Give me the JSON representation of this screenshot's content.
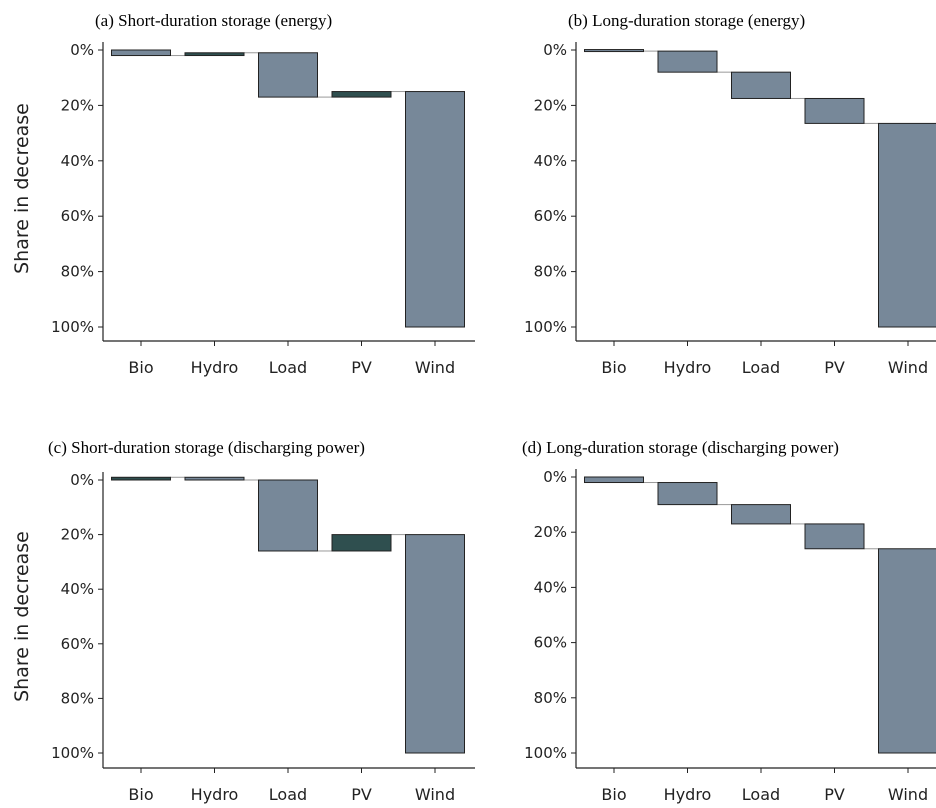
{
  "figure": {
    "colors": {
      "increase": "#778899",
      "decrease": "#2f4f4f",
      "connector": "#999999",
      "axis": "#222222",
      "edge": "#222222"
    }
  },
  "chart_data": [
    {
      "type": "bar",
      "subtype": "waterfall",
      "title": "(a) Short-duration storage (energy)",
      "ylabel": "Share in decrease",
      "categories": [
        "Bio",
        "Hydro",
        "Load",
        "PV",
        "Wind"
      ],
      "yticks": [
        "0%",
        "20%",
        "40%",
        "60%",
        "80%",
        "100%"
      ],
      "ylim": [
        0,
        100
      ],
      "y_inverted": true,
      "steps": [
        {
          "category": "Bio",
          "start": 0,
          "end": 2,
          "direction": "increase"
        },
        {
          "category": "Hydro",
          "start": 2,
          "end": 1,
          "direction": "decrease"
        },
        {
          "category": "Load",
          "start": 1,
          "end": 17,
          "direction": "increase"
        },
        {
          "category": "PV",
          "start": 17,
          "end": 15,
          "direction": "decrease"
        },
        {
          "category": "Wind",
          "start": 15,
          "end": 100,
          "direction": "increase"
        }
      ]
    },
    {
      "type": "bar",
      "subtype": "waterfall",
      "title": "(b) Long-duration storage (energy)",
      "ylabel": "",
      "categories": [
        "Bio",
        "Hydro",
        "Load",
        "PV",
        "Wind"
      ],
      "yticks": [
        "0%",
        "20%",
        "40%",
        "60%",
        "80%",
        "100%"
      ],
      "ylim": [
        0,
        100
      ],
      "y_inverted": true,
      "steps": [
        {
          "category": "Bio",
          "start": 0,
          "end": 0.4,
          "direction": "increase"
        },
        {
          "category": "Hydro",
          "start": 0.4,
          "end": 8,
          "direction": "increase"
        },
        {
          "category": "Load",
          "start": 8,
          "end": 17.5,
          "direction": "increase"
        },
        {
          "category": "PV",
          "start": 17.5,
          "end": 26.5,
          "direction": "increase"
        },
        {
          "category": "Wind",
          "start": 26.5,
          "end": 100,
          "direction": "increase"
        }
      ]
    },
    {
      "type": "bar",
      "subtype": "waterfall",
      "title": "(c) Short-duration storage (discharging power)",
      "ylabel": "Share in decrease",
      "categories": [
        "Bio",
        "Hydro",
        "Load",
        "PV",
        "Wind"
      ],
      "yticks": [
        "0%",
        "20%",
        "40%",
        "60%",
        "80%",
        "100%"
      ],
      "ylim": [
        0,
        100
      ],
      "y_inverted": true,
      "steps": [
        {
          "category": "Bio",
          "start": 0,
          "end": -1,
          "direction": "decrease"
        },
        {
          "category": "Hydro",
          "start": -1,
          "end": 0,
          "direction": "increase"
        },
        {
          "category": "Load",
          "start": 0,
          "end": 26,
          "direction": "increase"
        },
        {
          "category": "PV",
          "start": 26,
          "end": 20,
          "direction": "decrease"
        },
        {
          "category": "Wind",
          "start": 20,
          "end": 100,
          "direction": "increase"
        }
      ]
    },
    {
      "type": "bar",
      "subtype": "waterfall",
      "title": "(d) Long-duration storage (discharging power)",
      "ylabel": "",
      "categories": [
        "Bio",
        "Hydro",
        "Load",
        "PV",
        "Wind"
      ],
      "yticks": [
        "0%",
        "20%",
        "40%",
        "60%",
        "80%",
        "100%"
      ],
      "ylim": [
        0,
        100
      ],
      "y_inverted": true,
      "steps": [
        {
          "category": "Bio",
          "start": 0,
          "end": 2,
          "direction": "increase"
        },
        {
          "category": "Hydro",
          "start": 2,
          "end": 10,
          "direction": "increase"
        },
        {
          "category": "Load",
          "start": 10,
          "end": 17,
          "direction": "increase"
        },
        {
          "category": "PV",
          "start": 17,
          "end": 26,
          "direction": "increase"
        },
        {
          "category": "Wind",
          "start": 26,
          "end": 100,
          "direction": "increase"
        }
      ]
    }
  ]
}
